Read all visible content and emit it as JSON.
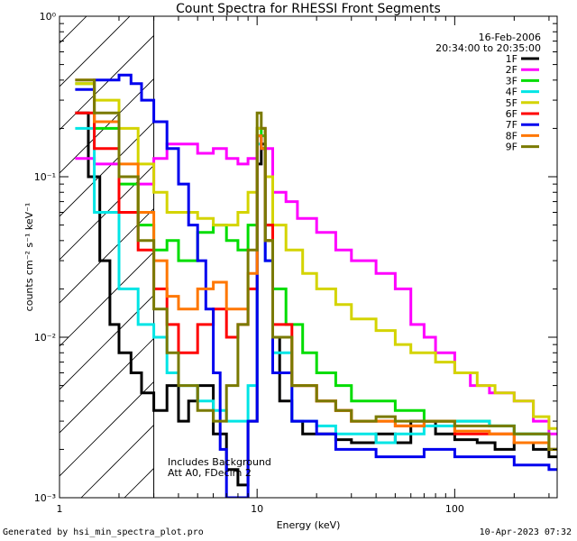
{
  "chart_data": {
    "type": "line",
    "title": "Count Spectra for RHESSI Front Segments",
    "xlabel": "Energy (keV)",
    "ylabel": "counts cm⁻² s⁻¹ keV⁻¹",
    "xscale": "log",
    "yscale": "log",
    "xlim": [
      1,
      330
    ],
    "ylim": [
      0.001,
      1
    ],
    "xticks": [
      {
        "value": 1,
        "label": "1"
      },
      {
        "value": 10,
        "label": "10"
      },
      {
        "value": 100,
        "label": "100"
      }
    ],
    "yticks": [
      {
        "value": 0.001,
        "label": "10⁻³"
      },
      {
        "value": 0.01,
        "label": "10⁻²"
      },
      {
        "value": 0.1,
        "label": "10⁻¹"
      },
      {
        "value": 1,
        "label": "10⁰"
      }
    ],
    "date": "16-Feb-2006",
    "time_range": "20:34:00 to 20:35:00",
    "hatched_region": {
      "x_start": 1,
      "x_end": 3
    },
    "annotations": [
      "Includes Background",
      "Att A0, FDecim 2"
    ],
    "series": [
      {
        "name": "1F",
        "color": "#000000",
        "x": [
          1.2,
          1.4,
          1.6,
          1.8,
          2.0,
          2.3,
          2.6,
          3.0,
          3.5,
          4.0,
          4.5,
          5.0,
          6.0,
          7.0,
          8.0,
          9.0,
          10.0,
          10.5,
          11.0,
          12.0,
          13.0,
          15.0,
          17.0,
          20.0,
          25.0,
          30.0,
          40.0,
          50.0,
          60.0,
          80.0,
          100.0,
          130.0,
          160.0,
          200.0,
          250.0,
          300.0
        ],
        "values": [
          0.25,
          0.1,
          0.03,
          0.012,
          0.008,
          0.006,
          0.0045,
          0.0035,
          0.005,
          0.003,
          0.004,
          0.005,
          0.0025,
          0.0015,
          0.0012,
          0.003,
          0.12,
          0.16,
          0.04,
          0.01,
          0.004,
          0.003,
          0.0025,
          0.0025,
          0.0023,
          0.0022,
          0.0025,
          0.0022,
          0.003,
          0.0025,
          0.0023,
          0.0022,
          0.002,
          0.0022,
          0.002,
          0.0018
        ]
      },
      {
        "name": "2F",
        "color": "#ff00ff",
        "x": [
          1.2,
          1.5,
          2.0,
          2.5,
          3.0,
          3.5,
          4.0,
          5.0,
          6.0,
          7.0,
          8.0,
          9.0,
          10.0,
          10.5,
          11.0,
          12.0,
          14.0,
          16.0,
          20.0,
          25.0,
          30.0,
          40.0,
          50.0,
          60.0,
          70.0,
          80.0,
          100.0,
          120.0,
          150.0,
          200.0,
          250.0,
          300.0
        ],
        "values": [
          0.13,
          0.12,
          0.1,
          0.09,
          0.13,
          0.16,
          0.16,
          0.14,
          0.15,
          0.13,
          0.12,
          0.13,
          0.2,
          0.2,
          0.15,
          0.08,
          0.07,
          0.055,
          0.045,
          0.035,
          0.03,
          0.025,
          0.02,
          0.012,
          0.01,
          0.008,
          0.006,
          0.005,
          0.0045,
          0.004,
          0.003,
          0.0025
        ]
      },
      {
        "name": "3F",
        "color": "#00dd00",
        "x": [
          1.2,
          1.5,
          2.0,
          2.5,
          3.0,
          3.5,
          4.0,
          5.0,
          6.0,
          7.0,
          8.0,
          9.0,
          10.0,
          10.5,
          11.0,
          12.0,
          14.0,
          17.0,
          20.0,
          25.0,
          30.0,
          40.0,
          50.0,
          70.0,
          100.0,
          150.0,
          200.0,
          300.0
        ],
        "values": [
          0.38,
          0.2,
          0.09,
          0.05,
          0.035,
          0.04,
          0.03,
          0.045,
          0.05,
          0.04,
          0.035,
          0.05,
          0.2,
          0.18,
          0.05,
          0.02,
          0.012,
          0.008,
          0.006,
          0.005,
          0.004,
          0.004,
          0.0035,
          0.003,
          0.003,
          0.0028,
          0.0025,
          0.002
        ]
      },
      {
        "name": "4F",
        "color": "#00e5e5",
        "x": [
          1.2,
          1.5,
          2.0,
          2.5,
          3.0,
          3.5,
          4.0,
          5.0,
          6.0,
          7.0,
          8.0,
          9.0,
          10.0,
          10.5,
          11.0,
          12.0,
          15.0,
          20.0,
          25.0,
          30.0,
          40.0,
          50.0,
          70.0,
          100.0,
          150.0,
          200.0,
          300.0
        ],
        "values": [
          0.2,
          0.06,
          0.02,
          0.012,
          0.01,
          0.006,
          0.005,
          0.004,
          0.0035,
          0.003,
          0.003,
          0.005,
          0.16,
          0.15,
          0.03,
          0.008,
          0.003,
          0.0028,
          0.0025,
          0.0025,
          0.0022,
          0.0025,
          0.0028,
          0.003,
          0.0028,
          0.0025,
          0.002
        ]
      },
      {
        "name": "5F",
        "color": "#d4d400",
        "x": [
          1.2,
          1.5,
          2.0,
          2.5,
          3.0,
          3.5,
          4.0,
          5.0,
          6.0,
          7.0,
          8.0,
          9.0,
          10.0,
          10.5,
          11.0,
          12.0,
          14.0,
          17.0,
          20.0,
          25.0,
          30.0,
          40.0,
          50.0,
          60.0,
          80.0,
          100.0,
          130.0,
          160.0,
          200.0,
          250.0,
          300.0
        ],
        "values": [
          0.38,
          0.3,
          0.2,
          0.12,
          0.08,
          0.06,
          0.06,
          0.055,
          0.05,
          0.05,
          0.06,
          0.08,
          0.2,
          0.2,
          0.1,
          0.05,
          0.035,
          0.025,
          0.02,
          0.016,
          0.013,
          0.011,
          0.009,
          0.008,
          0.007,
          0.006,
          0.005,
          0.0045,
          0.004,
          0.0032,
          0.0027
        ]
      },
      {
        "name": "6F",
        "color": "#ff0000",
        "x": [
          1.2,
          1.5,
          2.0,
          2.5,
          3.0,
          3.5,
          4.0,
          5.0,
          6.0,
          7.0,
          8.0,
          9.0,
          10.0,
          10.5,
          11.0,
          12.0,
          15.0,
          20.0,
          25.0,
          30.0,
          40.0,
          50.0,
          70.0,
          100.0,
          150.0,
          200.0,
          300.0
        ],
        "values": [
          0.25,
          0.15,
          0.06,
          0.035,
          0.02,
          0.012,
          0.008,
          0.012,
          0.015,
          0.01,
          0.012,
          0.02,
          0.18,
          0.15,
          0.05,
          0.012,
          0.005,
          0.004,
          0.0035,
          0.003,
          0.003,
          0.0028,
          0.003,
          0.0025,
          0.0025,
          0.0022,
          0.002
        ]
      },
      {
        "name": "7F",
        "color": "#0000ee",
        "x": [
          1.2,
          1.5,
          2.0,
          2.3,
          2.6,
          3.0,
          3.5,
          4.0,
          4.5,
          5.0,
          5.5,
          6.0,
          6.5,
          7.0,
          7.5,
          8.0,
          9.0,
          10.0,
          10.5,
          11.0,
          12.0,
          15.0,
          20.0,
          25.0,
          30.0,
          40.0,
          50.0,
          70.0,
          100.0,
          150.0,
          200.0,
          300.0
        ],
        "values": [
          0.35,
          0.4,
          0.43,
          0.38,
          0.3,
          0.22,
          0.15,
          0.09,
          0.05,
          0.03,
          0.015,
          0.006,
          0.002,
          0.001,
          0.001,
          0.001,
          0.003,
          0.18,
          0.15,
          0.03,
          0.006,
          0.003,
          0.0025,
          0.002,
          0.002,
          0.0018,
          0.0018,
          0.002,
          0.0018,
          0.0018,
          0.0016,
          0.0015
        ]
      },
      {
        "name": "8F",
        "color": "#ff7700",
        "x": [
          1.2,
          1.5,
          2.0,
          2.5,
          3.0,
          3.5,
          4.0,
          5.0,
          6.0,
          7.0,
          8.0,
          9.0,
          10.0,
          10.5,
          11.0,
          12.0,
          15.0,
          20.0,
          25.0,
          30.0,
          40.0,
          50.0,
          70.0,
          100.0,
          150.0,
          200.0,
          300.0
        ],
        "values": [
          0.4,
          0.22,
          0.12,
          0.06,
          0.03,
          0.018,
          0.015,
          0.02,
          0.022,
          0.015,
          0.015,
          0.025,
          0.18,
          0.15,
          0.04,
          0.01,
          0.005,
          0.004,
          0.0035,
          0.003,
          0.003,
          0.0028,
          0.003,
          0.0026,
          0.0025,
          0.0022,
          0.002
        ]
      },
      {
        "name": "9F",
        "color": "#7a7a00",
        "x": [
          1.2,
          1.5,
          2.0,
          2.5,
          3.0,
          3.5,
          4.0,
          5.0,
          6.0,
          7.0,
          8.0,
          9.0,
          10.0,
          10.5,
          11.0,
          12.0,
          15.0,
          20.0,
          25.0,
          30.0,
          40.0,
          50.0,
          70.0,
          100.0,
          150.0,
          200.0,
          300.0
        ],
        "values": [
          0.4,
          0.25,
          0.1,
          0.04,
          0.015,
          0.008,
          0.005,
          0.0035,
          0.003,
          0.005,
          0.012,
          0.035,
          0.25,
          0.2,
          0.04,
          0.01,
          0.005,
          0.004,
          0.0035,
          0.003,
          0.0032,
          0.003,
          0.003,
          0.0028,
          0.0028,
          0.0025,
          0.002
        ]
      }
    ]
  },
  "footer": {
    "left": "Generated by hsi_min_spectra_plot.pro",
    "right": "10-Apr-2023 07:32"
  }
}
